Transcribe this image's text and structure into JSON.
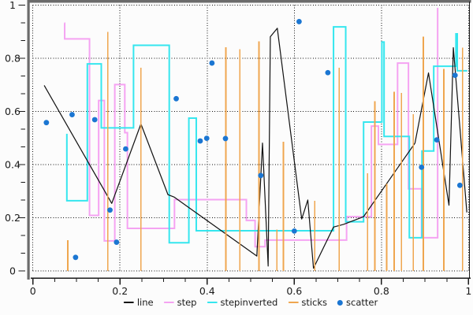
{
  "chart": {
    "background": "#fcfcfc",
    "axes": {
      "x": {
        "range": [
          0,
          1
        ],
        "major_ticks": [
          0,
          0.2,
          0.4,
          0.6,
          0.8,
          1
        ],
        "tick_labels": [
          "0",
          "0.2",
          "0.4",
          "0.6",
          "0.8",
          "1"
        ],
        "minor_step": 0.05
      },
      "y": {
        "range": [
          0,
          1
        ],
        "major_ticks": [
          0,
          0.2,
          0.4,
          0.6,
          0.8,
          1
        ],
        "tick_labels": [
          "0",
          "0.2",
          "0.4",
          "0.6",
          "0.8",
          "1"
        ],
        "minor_divisions": 15
      }
    },
    "grid": {
      "shown": true,
      "style": "dotted",
      "color": "#111111",
      "interval": 0.2
    },
    "spine_colors": {
      "left": "#6b6b6b",
      "top": "#6b6b6b",
      "bottom": "#1a1a1a",
      "right": "#1a1a1a"
    },
    "tick_label_color": "#1a1a1a",
    "legend": [
      {
        "label": "line",
        "swatch": "dash",
        "color": "#111111"
      },
      {
        "label": "step",
        "swatch": "dash",
        "color": "#f5a3f2"
      },
      {
        "label": "stepinverted",
        "swatch": "dash",
        "color": "#35e6ee"
      },
      {
        "label": "sticks",
        "swatch": "dash",
        "color": "#efa64f"
      },
      {
        "label": "scatter",
        "swatch": "dot",
        "color": "#1b76d2"
      }
    ]
  },
  "chart_data": [
    {
      "type": "line",
      "name": "line",
      "color": "#111111",
      "points": [
        [
          0.026,
          0.698
        ],
        [
          0.181,
          0.254
        ],
        [
          0.248,
          0.553
        ],
        [
          0.31,
          0.287
        ],
        [
          0.324,
          0.278
        ],
        [
          0.514,
          0.056
        ],
        [
          0.527,
          0.481
        ],
        [
          0.54,
          0.018
        ],
        [
          0.545,
          0.881
        ],
        [
          0.561,
          0.913
        ],
        [
          0.617,
          0.195
        ],
        [
          0.631,
          0.267
        ],
        [
          0.644,
          0.01
        ],
        [
          0.69,
          0.165
        ],
        [
          0.713,
          0.175
        ],
        [
          0.759,
          0.204
        ],
        [
          0.877,
          0.481
        ],
        [
          0.908,
          0.745
        ],
        [
          0.955,
          0.247
        ],
        [
          0.965,
          0.84
        ],
        [
          0.996,
          0.22
        ]
      ]
    },
    {
      "type": "step",
      "name": "step",
      "color": "#f5a3f2",
      "points": [
        [
          0.072,
          0.932
        ],
        [
          0.073,
          0.873
        ],
        [
          0.13,
          0.209
        ],
        [
          0.151,
          0.641
        ],
        [
          0.164,
          0.113
        ],
        [
          0.188,
          0.701
        ],
        [
          0.211,
          0.52
        ],
        [
          0.217,
          0.16
        ],
        [
          0.325,
          0.268
        ],
        [
          0.49,
          0.19
        ],
        [
          0.51,
          0.091
        ],
        [
          0.533,
          0.116
        ],
        [
          0.72,
          0.204
        ],
        [
          0.777,
          0.545
        ],
        [
          0.793,
          0.476
        ],
        [
          0.837,
          0.782
        ],
        [
          0.862,
          0.309
        ],
        [
          0.892,
          0.125
        ],
        [
          0.929,
          0.99
        ]
      ]
    },
    {
      "type": "step-inverted",
      "name": "stepinverted",
      "color": "#35e6ee",
      "points": [
        [
          0.078,
          0.516
        ],
        [
          0.125,
          0.264
        ],
        [
          0.157,
          0.779
        ],
        [
          0.231,
          0.538
        ],
        [
          0.313,
          0.849
        ],
        [
          0.358,
          0.106
        ],
        [
          0.375,
          0.575
        ],
        [
          0.69,
          0.151
        ],
        [
          0.718,
          0.918
        ],
        [
          0.759,
          0.185
        ],
        [
          0.801,
          0.56
        ],
        [
          0.806,
          0.861
        ],
        [
          0.864,
          0.506
        ],
        [
          0.893,
          0.125
        ],
        [
          0.92,
          0.451
        ],
        [
          0.971,
          0.77
        ],
        [
          0.974,
          0.892
        ],
        [
          0.997,
          0.753
        ]
      ]
    },
    {
      "type": "sticks",
      "name": "sticks",
      "color": "#efa64f",
      "baseline": 0,
      "points": [
        [
          0.08,
          0.115
        ],
        [
          0.172,
          0.9
        ],
        [
          0.248,
          0.765
        ],
        [
          0.443,
          0.841
        ],
        [
          0.475,
          0.834
        ],
        [
          0.519,
          0.863
        ],
        [
          0.56,
          0.155
        ],
        [
          0.575,
          0.486
        ],
        [
          0.647,
          0.264
        ],
        [
          0.703,
          0.764
        ],
        [
          0.768,
          0.367
        ],
        [
          0.785,
          0.639
        ],
        [
          0.812,
          0.328
        ],
        [
          0.829,
          0.674
        ],
        [
          0.846,
          0.669
        ],
        [
          0.873,
          0.59
        ],
        [
          0.896,
          0.881
        ],
        [
          0.943,
          0.76
        ],
        [
          0.986,
          0.84
        ]
      ]
    },
    {
      "type": "scatter",
      "name": "scatter",
      "color": "#1b76d2",
      "points": [
        [
          0.031,
          0.558
        ],
        [
          0.09,
          0.588
        ],
        [
          0.098,
          0.051
        ],
        [
          0.142,
          0.569
        ],
        [
          0.177,
          0.229
        ],
        [
          0.192,
          0.108
        ],
        [
          0.213,
          0.459
        ],
        [
          0.329,
          0.648
        ],
        [
          0.384,
          0.489
        ],
        [
          0.399,
          0.499
        ],
        [
          0.411,
          0.782
        ],
        [
          0.442,
          0.498
        ],
        [
          0.523,
          0.359
        ],
        [
          0.6,
          0.15
        ],
        [
          0.611,
          0.938
        ],
        [
          0.677,
          0.746
        ],
        [
          0.892,
          0.39
        ],
        [
          0.927,
          0.493
        ],
        [
          0.969,
          0.736
        ],
        [
          0.98,
          0.322
        ]
      ]
    }
  ]
}
